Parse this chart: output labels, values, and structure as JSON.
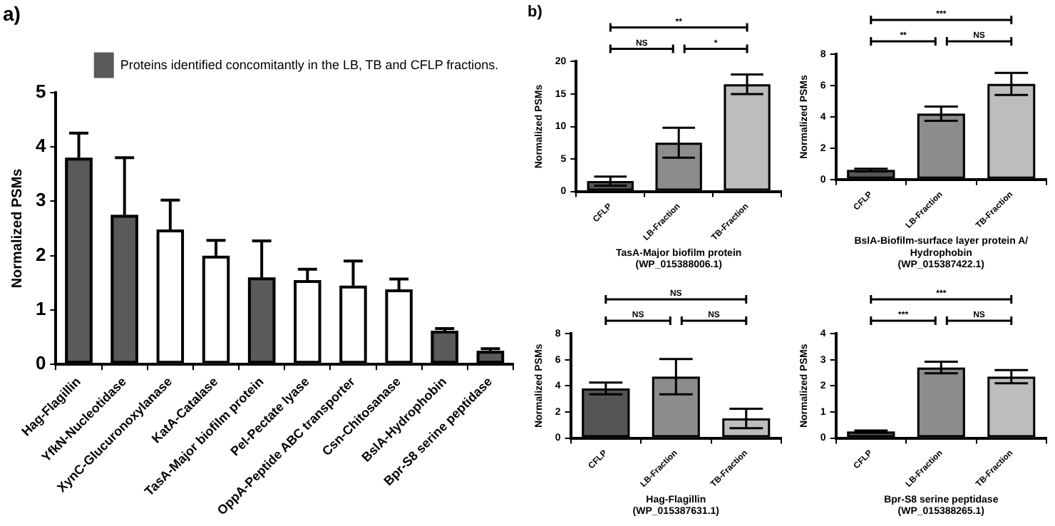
{
  "chart_data": [
    {
      "type": "bar",
      "title": "a)",
      "ylabel": "Normalized PSMs",
      "categories": [
        "Hag-Flagillin",
        "YfkN-Nucleotidase",
        "XynC-Glucuronoxylanase",
        "KatA-Catalase",
        "TasA-Major biofilm protein",
        "Pel-Pectate lyase",
        "OppA-Peptide ABC transporter",
        "Csn-Chitosanase",
        "BslA-Hydrophobin",
        "Bpr-S8 serine peptidase"
      ],
      "series": [
        {
          "name": "Proteins identified concomitantly in the LB, TB and CFLP fractions.",
          "color": "#5a5a5a",
          "values": [
            3.8,
            2.75,
            null,
            null,
            1.6,
            null,
            null,
            null,
            0.62,
            0.25
          ],
          "errors": [
            [
              3.8,
              4.25
            ],
            [
              2.75,
              3.8
            ],
            null,
            null,
            [
              1.6,
              2.27
            ],
            null,
            null,
            null,
            [
              0.62,
              0.66
            ],
            [
              0.25,
              0.29
            ]
          ]
        },
        {
          "color": "#ffffff",
          "values": [
            null,
            null,
            2.48,
            2.0,
            null,
            1.55,
            1.45,
            1.38,
            null,
            null
          ],
          "errors": [
            null,
            null,
            [
              2.48,
              3.02
            ],
            [
              2.0,
              2.28
            ],
            null,
            [
              1.55,
              1.75
            ],
            [
              1.45,
              1.9
            ],
            [
              1.38,
              1.57
            ],
            null,
            null
          ]
        }
      ],
      "ylim": [
        0,
        5
      ],
      "yticks": [
        0,
        1,
        2,
        3,
        4,
        5
      ],
      "grid": false,
      "legend": "top right"
    },
    {
      "type": "bar",
      "title": "b)",
      "xlabel": "TasA-Major biofilm protein\n(WP_015388006.1)",
      "ylabel": "Normalized PSMs",
      "categories": [
        "CFLP",
        "LB-Fraction",
        "TB-Fraction"
      ],
      "values": [
        1.6,
        7.5,
        16.5
      ],
      "errors": [
        0.7,
        2.3,
        1.5
      ],
      "colors": [
        "#555555",
        "#8c8c8c",
        "#bdbdbd"
      ],
      "ylim": [
        0,
        20
      ],
      "yticks": [
        0,
        5,
        10,
        15,
        20
      ],
      "grid": false,
      "legend": false,
      "annotations": [
        "**",
        "NS",
        "*"
      ]
    },
    {
      "type": "bar",
      "xlabel": "BslA-Biofilm-surface layer protein A/\nHydrophobin\n(WP_015387422.1)",
      "ylabel": "Normalized PSMs",
      "categories": [
        "CFLP",
        "LB-Fraction",
        "TB-Fraction"
      ],
      "values": [
        0.6,
        4.2,
        6.1
      ],
      "errors": [
        0.08,
        0.45,
        0.7
      ],
      "colors": [
        "#555555",
        "#8c8c8c",
        "#bdbdbd"
      ],
      "ylim": [
        0,
        8
      ],
      "yticks": [
        0,
        2,
        4,
        6,
        8
      ],
      "grid": false,
      "legend": false,
      "annotations": [
        "***",
        "**",
        "NS"
      ]
    },
    {
      "type": "bar",
      "xlabel": "Hag-Flagillin\n(WP_015387631.1)",
      "ylabel": "Normalized PSMs",
      "categories": [
        "CFLP",
        "LB-Fraction",
        "TB-Fraction"
      ],
      "values": [
        3.8,
        4.7,
        1.5
      ],
      "errors": [
        0.45,
        1.35,
        0.75
      ],
      "colors": [
        "#555555",
        "#8c8c8c",
        "#bdbdbd"
      ],
      "ylim": [
        0,
        8
      ],
      "yticks": [
        0,
        2,
        4,
        6,
        8
      ],
      "grid": false,
      "legend": false,
      "annotations": [
        "NS",
        "NS",
        "NS"
      ]
    },
    {
      "type": "bar",
      "xlabel": "Bpr-S8 serine peptidase\n(WP_015388265.1)",
      "ylabel": "Normalized PSMs",
      "categories": [
        "CFLP",
        "LB-Fraction",
        "TB-Fraction"
      ],
      "values": [
        0.25,
        2.7,
        2.35
      ],
      "errors": [
        0.04,
        0.22,
        0.25
      ],
      "colors": [
        "#555555",
        "#8c8c8c",
        "#bdbdbd"
      ],
      "ylim": [
        0,
        4
      ],
      "yticks": [
        0,
        1,
        2,
        3,
        4
      ],
      "grid": false,
      "legend": false,
      "annotations": [
        "***",
        "***",
        "NS"
      ]
    }
  ]
}
